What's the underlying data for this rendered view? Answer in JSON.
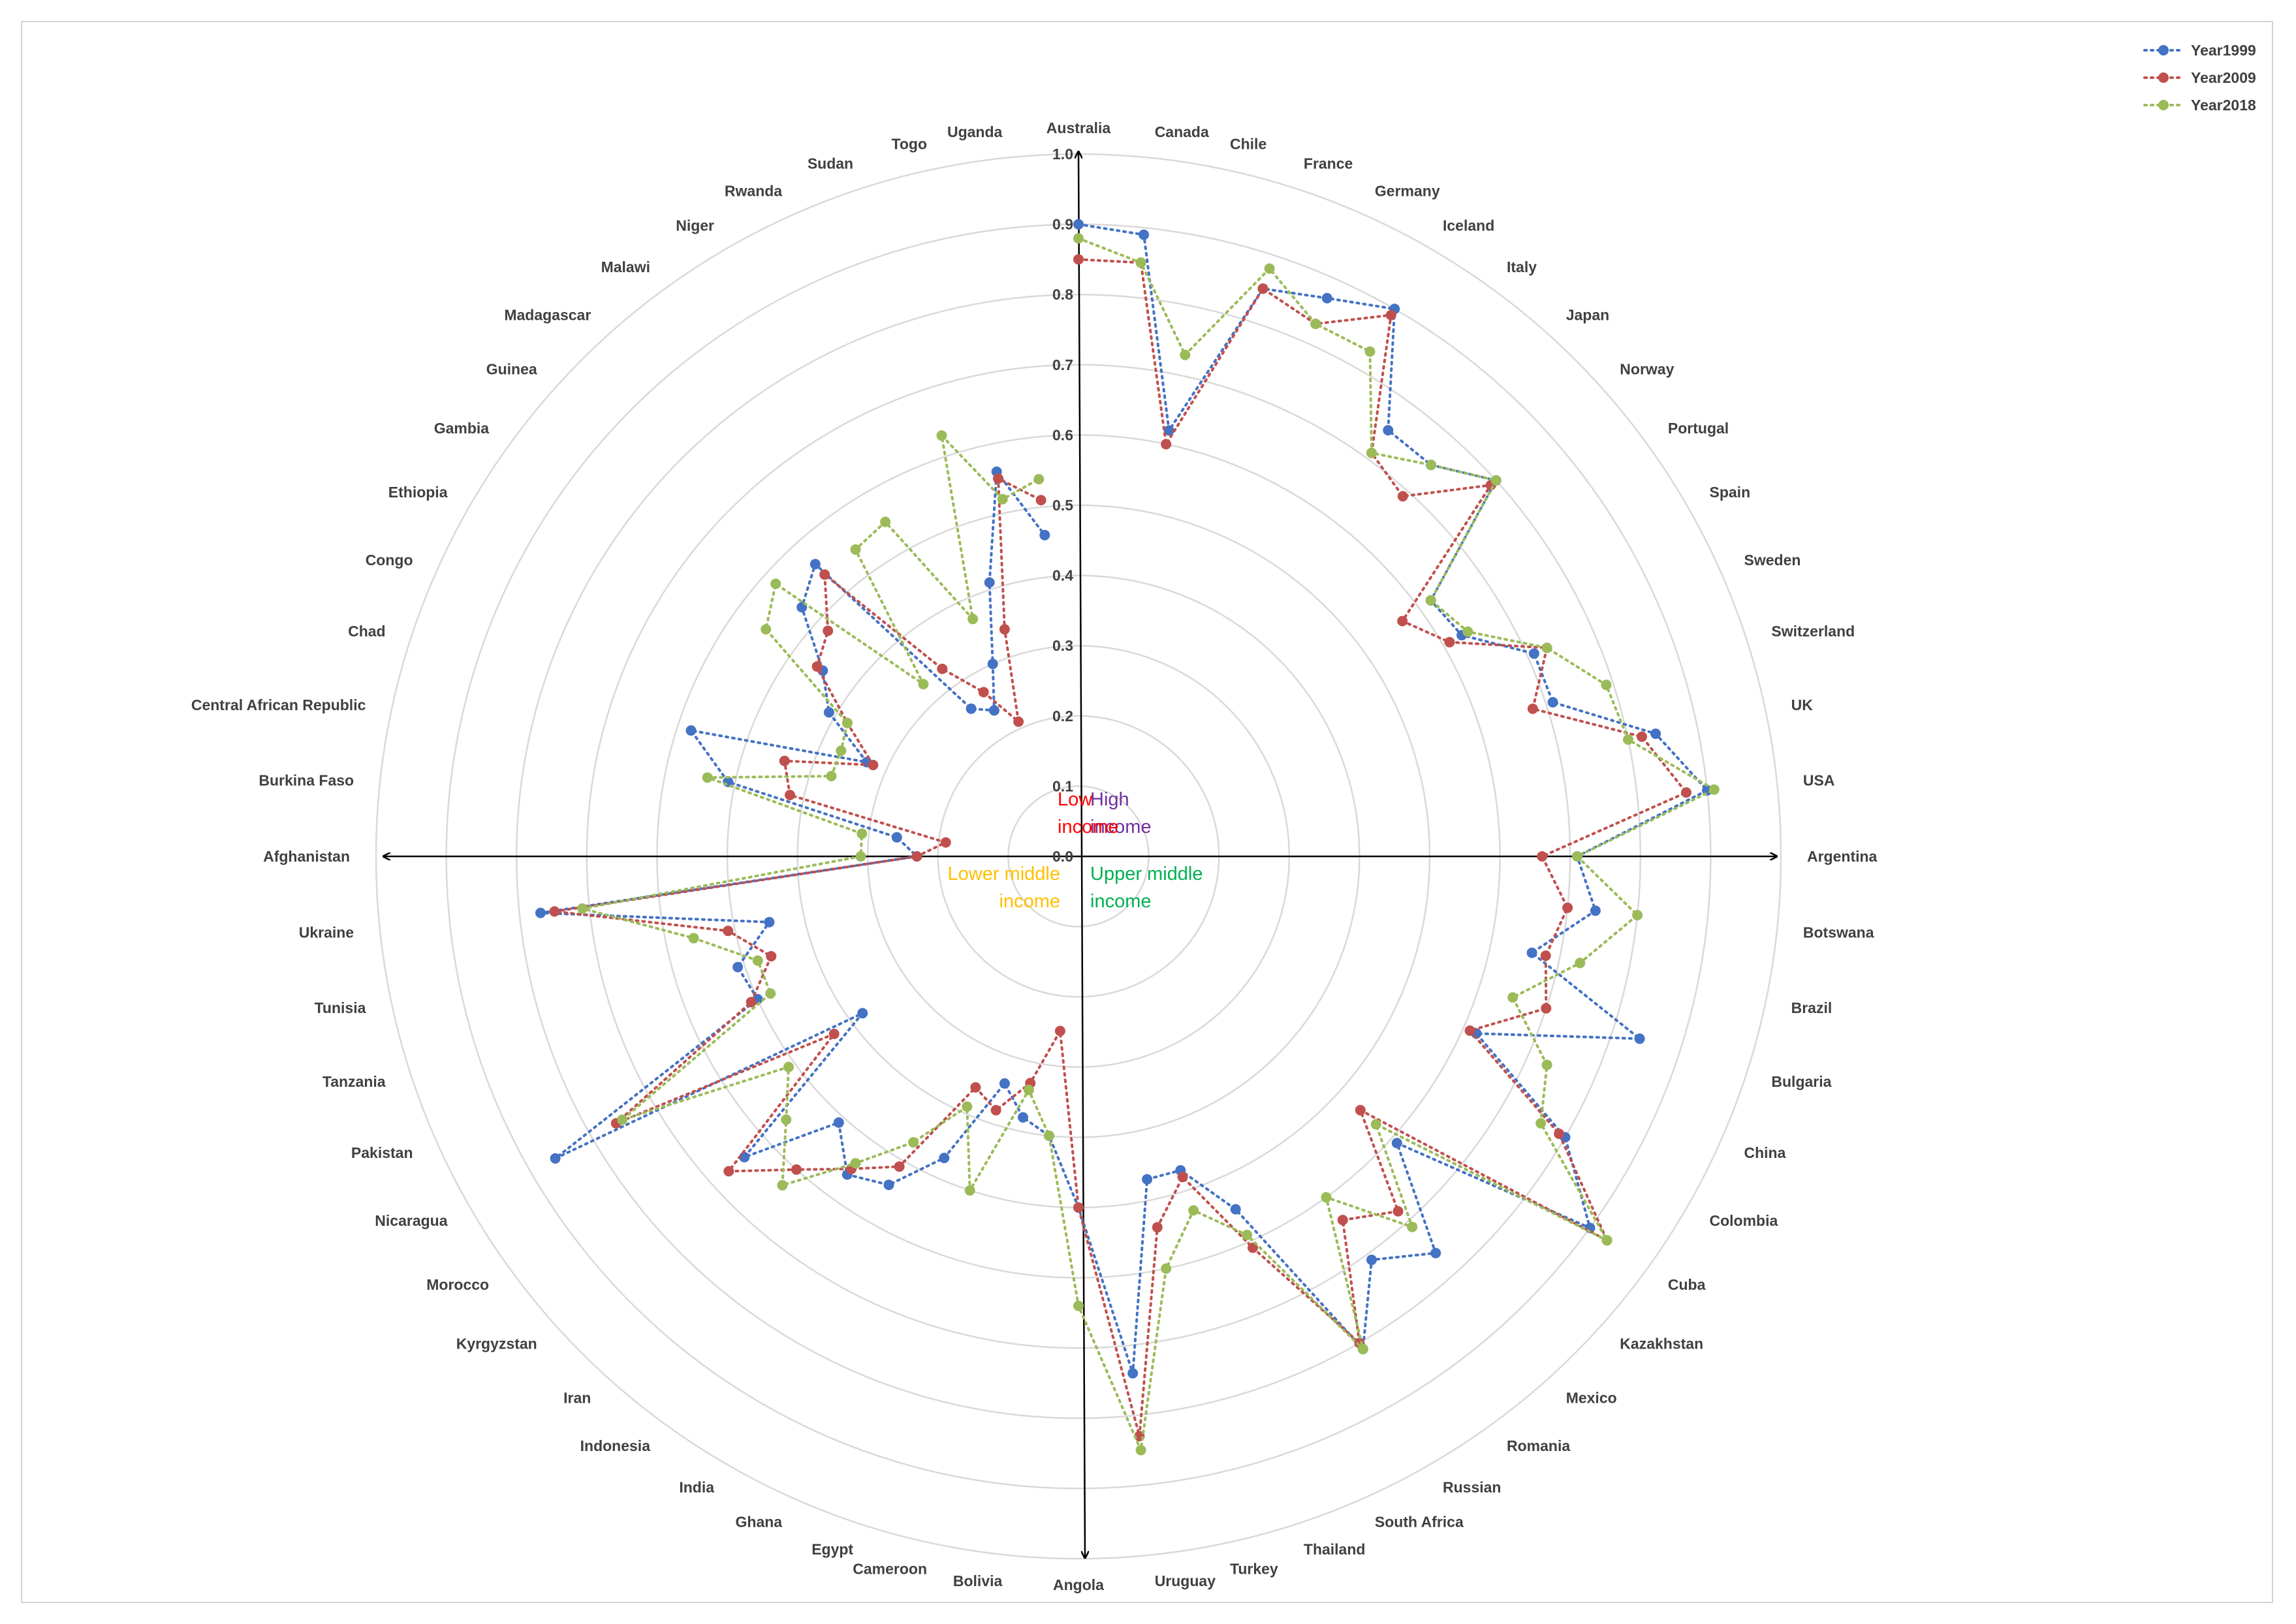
{
  "chart_data": {
    "type": "radar",
    "title": "",
    "radial_axis": {
      "min": 0.0,
      "max": 1.0,
      "step": 0.1,
      "tick_labels": [
        "0.0",
        "0.1",
        "0.2",
        "0.3",
        "0.4",
        "0.5",
        "0.6",
        "0.7",
        "0.8",
        "0.9",
        "1.0"
      ]
    },
    "grid": true,
    "legend_position": "top-right",
    "quadrant_labels": [
      {
        "text": [
          "High",
          "income"
        ],
        "color": "#7030A0",
        "quadrant": "top-right"
      },
      {
        "text": [
          "Low",
          "income"
        ],
        "color": "#FF0000",
        "quadrant": "top-left"
      },
      {
        "text": [
          "Upper middle",
          "income"
        ],
        "color": "#00B050",
        "quadrant": "bottom-right"
      },
      {
        "text": [
          "Lower middle",
          "income"
        ],
        "color": "#FFC000",
        "quadrant": "bottom-left"
      }
    ],
    "categories": [
      "Australia",
      "Canada",
      "Chile",
      "France",
      "Germany",
      "Iceland",
      "Italy",
      "Japan",
      "Norway",
      "Portugal",
      "Spain",
      "Sweden",
      "Switzerland",
      "UK",
      "USA",
      "Argentina",
      "Botswana",
      "Brazil",
      "Bulgaria",
      "China",
      "Colombia",
      "Cuba",
      "Kazakhstan",
      "Mexico",
      "Romania",
      "Russian",
      "South Africa",
      "Thailand",
      "Turkey",
      "Uruguay",
      "Angola",
      "Bolivia",
      "Cameroon",
      "Egypt",
      "Ghana",
      "India",
      "Indonesia",
      "Iran",
      "Kyrgyzstan",
      "Morocco",
      "Nicaragua",
      "Pakistan",
      "Tanzania",
      "Tunisia",
      "Ukraine",
      "Afghanistan",
      "Burkina Faso",
      "Central African Republic",
      "Chad",
      "Congo",
      "Ethiopia",
      "Gambia",
      "Guinea",
      "Madagascar",
      "Malawi",
      "Niger",
      "Rwanda",
      "Sudan",
      "Togo",
      "Uganda"
    ],
    "series": [
      {
        "name": "Year1999",
        "color": "#4472C4",
        "values": [
          0.9,
          0.89,
          0.62,
          0.85,
          0.87,
          0.9,
          0.75,
          0.75,
          0.8,
          0.62,
          0.63,
          0.71,
          0.71,
          0.84,
          0.9,
          0.71,
          0.74,
          0.66,
          0.84,
          0.62,
          0.8,
          0.9,
          0.61,
          0.76,
          0.71,
          0.81,
          0.55,
          0.47,
          0.47,
          0.74,
          0.5,
          0.4,
          0.38,
          0.34,
          0.47,
          0.54,
          0.56,
          0.51,
          0.64,
          0.38,
          0.86,
          0.5,
          0.51,
          0.45,
          0.77,
          0.23,
          0.26,
          0.51,
          0.58,
          0.33,
          0.41,
          0.45,
          0.53,
          0.56,
          0.26,
          0.24,
          0.3,
          0.41,
          0.56,
          0.46
        ]
      },
      {
        "name": "Year2009",
        "color": "#C0504D",
        "values": [
          0.85,
          0.85,
          0.6,
          0.85,
          0.83,
          0.89,
          0.71,
          0.69,
          0.79,
          0.57,
          0.61,
          0.73,
          0.68,
          0.82,
          0.87,
          0.66,
          0.7,
          0.68,
          0.7,
          0.61,
          0.79,
          0.93,
          0.54,
          0.68,
          0.64,
          0.8,
          0.61,
          0.48,
          0.54,
          0.83,
          0.5,
          0.25,
          0.33,
          0.38,
          0.36,
          0.51,
          0.55,
          0.6,
          0.67,
          0.43,
          0.76,
          0.51,
          0.46,
          0.51,
          0.75,
          0.23,
          0.19,
          0.42,
          0.44,
          0.32,
          0.38,
          0.46,
          0.48,
          0.54,
          0.33,
          0.27,
          0.21,
          0.34,
          0.55,
          0.51
        ]
      },
      {
        "name": "Year2018",
        "color": "#9BBB59",
        "values": [
          0.88,
          0.85,
          0.73,
          0.88,
          0.83,
          0.83,
          0.71,
          0.75,
          0.8,
          0.62,
          0.64,
          0.73,
          0.79,
          0.8,
          0.91,
          0.71,
          0.8,
          0.73,
          0.65,
          0.73,
          0.76,
          0.93,
          0.57,
          0.71,
          0.6,
          0.81,
          0.59,
          0.53,
          0.6,
          0.85,
          0.64,
          0.4,
          0.34,
          0.5,
          0.39,
          0.47,
          0.54,
          0.63,
          0.56,
          0.51,
          0.75,
          0.48,
          0.48,
          0.56,
          0.71,
          0.31,
          0.31,
          0.54,
          0.37,
          0.37,
          0.38,
          0.55,
          0.58,
          0.33,
          0.54,
          0.55,
          0.37,
          0.63,
          0.52,
          0.54
        ]
      }
    ]
  }
}
